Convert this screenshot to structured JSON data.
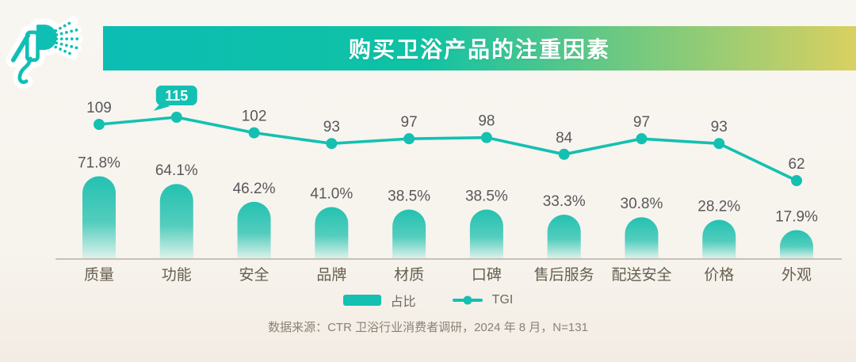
{
  "header": {
    "title": "购买卫浴产品的注重因素"
  },
  "chart_data": {
    "type": "bar",
    "subtype": "bar+line combo",
    "title": "购买卫浴产品的注重因素",
    "categories": [
      "质量",
      "功能",
      "安全",
      "品牌",
      "材质",
      "口碑",
      "售后服务",
      "配送安全",
      "价格",
      "外观"
    ],
    "series": [
      {
        "name": "占比",
        "type": "bar",
        "unit": "%",
        "values": [
          71.8,
          64.1,
          46.2,
          41.0,
          38.5,
          38.5,
          33.3,
          30.8,
          28.2,
          17.9
        ]
      },
      {
        "name": "TGI",
        "type": "line",
        "values": [
          109,
          115,
          102,
          93,
          97,
          98,
          84,
          97,
          93,
          62
        ]
      }
    ],
    "highlight": {
      "series": "TGI",
      "category": "功能",
      "index": 1,
      "value": 115
    },
    "legend": [
      "占比",
      "TGI"
    ],
    "legend_position": "bottom",
    "grid": false,
    "value_labels": true
  },
  "legend": {
    "bar_label": "占比",
    "line_label": "TGI"
  },
  "source_note": "数据来源：CTR 卫浴行业消费者调研，2024 年 8 月，N=131",
  "icons": {
    "header_icon": "shower-sprayer-icon"
  },
  "colors": {
    "teal": "#14c0b1",
    "banner_gradient_start": "#0bbdb3",
    "banner_gradient_end": "#d9d061",
    "bar_gradient_top": "#24c1b1",
    "bar_gradient_bottom": "#e0f2ec",
    "value_label": "#58585a",
    "category_label": "#675f50",
    "source_text": "#8b8274",
    "baseline": "#b7b1a7",
    "background": "#f8f5f0",
    "badge_text": "#ffffff"
  }
}
